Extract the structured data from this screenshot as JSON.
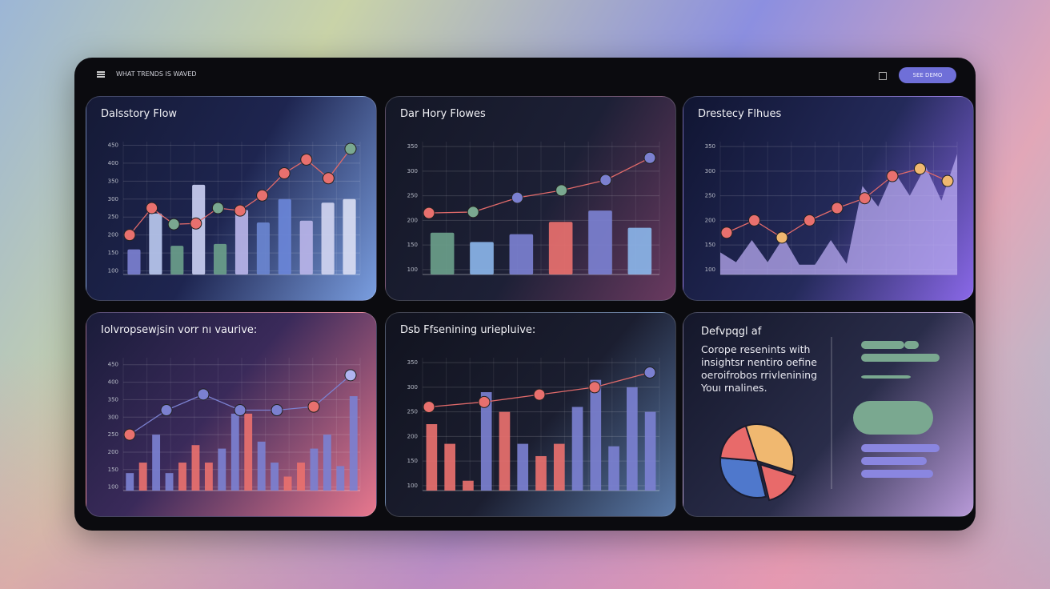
{
  "header": {
    "title": "WHAT TRENDS IS WAVED",
    "button": "SEE DEMO"
  },
  "panels": [
    {
      "title": "Dalsstory Flow",
      "chart": {
        "type": "bar",
        "ylim": [
          90,
          460
        ],
        "yticks": [
          100,
          150,
          200,
          250,
          300,
          350,
          400,
          450
        ],
        "bars": {
          "values": [
            160,
            260,
            170,
            340,
            175,
            270,
            235,
            300,
            240,
            290,
            300
          ],
          "colors": [
            "#7b80d0",
            "#b8c8ee",
            "#6a9e8a",
            "#c8cdf0",
            "#6a9e8a",
            "#b8b4e8",
            "#6a86d0",
            "#6a86d8",
            "#b8b4e8",
            "#d0d4f0",
            "#d8dcf2"
          ]
        },
        "line": {
          "values": [
            200,
            275,
            230,
            232,
            275,
            268,
            310,
            372,
            410,
            358,
            440
          ],
          "color": "#e06a6a",
          "point_colors": [
            "#e8706e",
            "#e8706e",
            "#7aa890",
            "#e8706e",
            "#7aa890",
            "#e8706e",
            "#e8706e",
            "#e8706e",
            "#e8706e",
            "#e8706e",
            "#7aa890"
          ]
        }
      }
    },
    {
      "title": "Dar Hory Flowes",
      "chart": {
        "type": "bar",
        "ylim": [
          90,
          360
        ],
        "yticks": [
          100,
          150,
          200,
          250,
          300,
          350
        ],
        "bars": {
          "values": [
            175,
            156,
            172,
            197,
            220,
            185
          ],
          "colors": [
            "#6a9e8a",
            "#8ab4e8",
            "#7b80d0",
            "#e8706e",
            "#7b80d0",
            "#8ab4e8"
          ]
        },
        "line": {
          "values": [
            215,
            217,
            246,
            261,
            282,
            327
          ],
          "color": "#e06a6a",
          "point_colors": [
            "#e8706e",
            "#7aa890",
            "#7b80d0",
            "#7aa890",
            "#7b80d0",
            "#7b80d0"
          ]
        }
      }
    },
    {
      "title": "Drestecy Flhues",
      "chart": {
        "type": "area",
        "ylim": [
          90,
          360
        ],
        "yticks": [
          100,
          150,
          200,
          250,
          300,
          350
        ],
        "area": {
          "values": [
            135,
            115,
            160,
            115,
            165,
            110,
            110,
            160,
            112,
            270,
            228,
            300,
            250,
            310,
            240,
            335
          ],
          "color": "#b8aaf0"
        },
        "line": {
          "values": [
            175,
            200,
            165,
            200,
            225,
            245,
            290,
            305,
            280
          ],
          "color": "#e06a6a",
          "point_colors": [
            "#e8706e",
            "#e8706e",
            "#f0b870",
            "#e8706e",
            "#e8706e",
            "#e8706e",
            "#e8706e",
            "#f0b870",
            "#f0b870"
          ]
        }
      }
    },
    {
      "title": "Iolvropsewjsin vorr nı vaurive:",
      "chart": {
        "type": "bar",
        "ylim": [
          90,
          470
        ],
        "yticks": [
          100,
          150,
          200,
          250,
          300,
          350,
          400,
          450
        ],
        "bars": {
          "values": [
            140,
            170,
            250,
            140,
            170,
            220,
            170,
            210,
            310,
            310,
            230,
            170,
            130,
            170,
            210,
            250,
            160,
            360
          ],
          "colors": [
            "#7b80d0",
            "#e8706e",
            "#7b80d0",
            "#7b80d0",
            "#e8706e",
            "#e8706e",
            "#e8706e",
            "#7b80d0",
            "#7b80d0",
            "#e8706e",
            "#7b80d0",
            "#7b80d0",
            "#e8706e",
            "#e8706e",
            "#7b80d0",
            "#7b80d0",
            "#7b80d0",
            "#7b80d0"
          ]
        },
        "line": {
          "values": [
            250,
            320,
            365,
            320,
            320,
            330,
            420
          ],
          "color": "#7b80d0",
          "point_colors": [
            "#e8706e",
            "#7b80d0",
            "#7b80d0",
            "#7b80d0",
            "#7b80d0",
            "#e8706e",
            "#b0b4f0"
          ]
        }
      }
    },
    {
      "title": "Dsb Ffsenining uriepluive:",
      "chart": {
        "type": "bar",
        "ylim": [
          90,
          360
        ],
        "yticks": [
          100,
          150,
          200,
          250,
          300,
          350
        ],
        "bars": {
          "values": [
            225,
            185,
            110,
            290,
            250,
            185,
            160,
            185,
            260,
            315,
            180,
            300,
            250
          ],
          "colors": [
            "#e8706e",
            "#e8706e",
            "#e8706e",
            "#7b80d0",
            "#e8706e",
            "#7b80d0",
            "#e8706e",
            "#e8706e",
            "#7b80d0",
            "#7b80d0",
            "#7b80d0",
            "#7b80d0",
            "#7b80d0"
          ]
        },
        "line": {
          "values": [
            260,
            270,
            285,
            300,
            330
          ],
          "color": "#e06a6a",
          "point_colors": [
            "#e8706e",
            "#e8706e",
            "#e8706e",
            "#e8706e",
            "#7b80d0"
          ]
        }
      }
    }
  ],
  "text_panel": {
    "title": "Defvpqgl af",
    "body": [
      "Corope resenints with",
      "insightsr nentiro oefine",
      "oeroifrobos rrivlenining",
      "Youı rnalines."
    ],
    "pie": {
      "values": [
        30,
        14,
        26,
        16
      ],
      "colors": [
        "#f0b870",
        "#e86a6a",
        "#4f78cc",
        "#e86a6a"
      ]
    }
  }
}
